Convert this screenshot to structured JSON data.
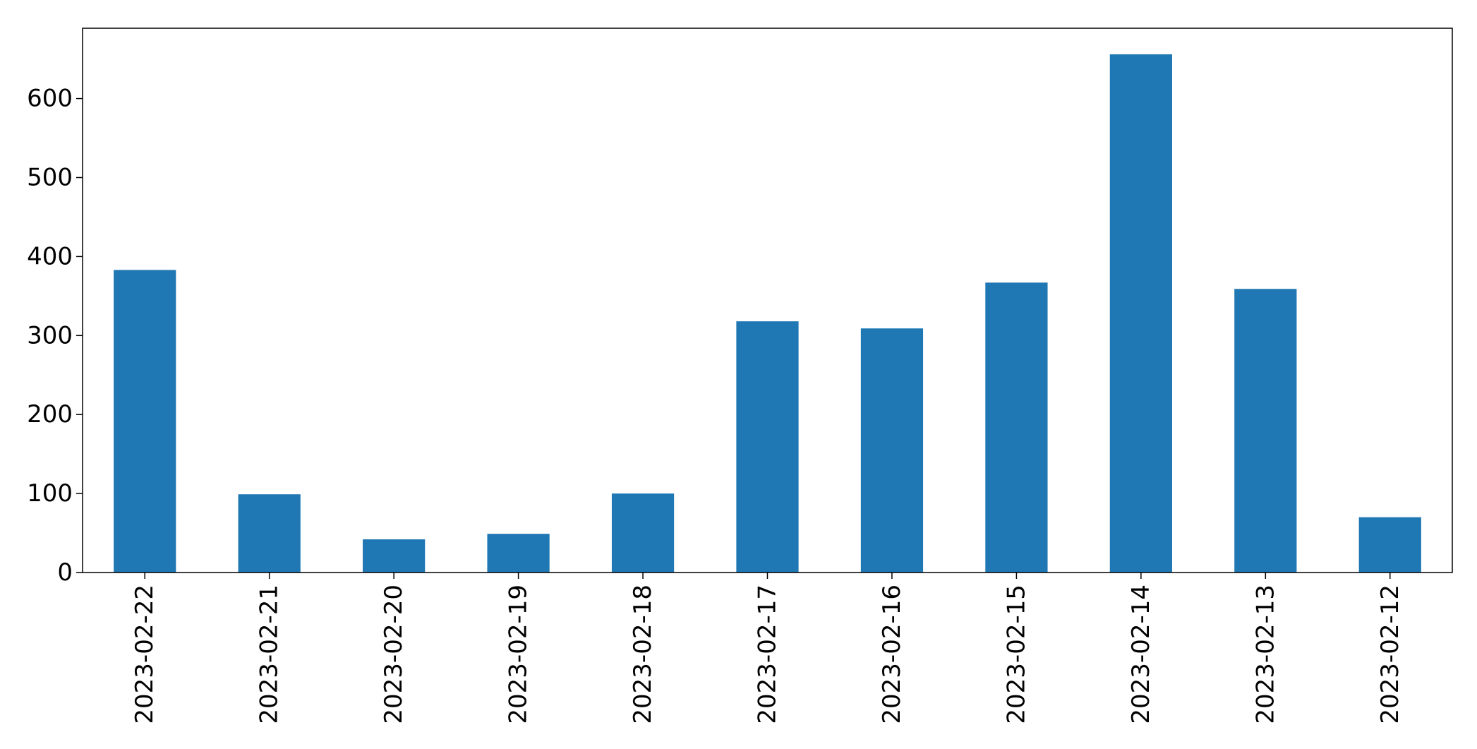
{
  "chart_data": {
    "type": "bar",
    "title": "",
    "xlabel": "",
    "ylabel": "",
    "categories": [
      "2023-02-22",
      "2023-02-21",
      "2023-02-20",
      "2023-02-19",
      "2023-02-18",
      "2023-02-17",
      "2023-02-16",
      "2023-02-15",
      "2023-02-14",
      "2023-02-13",
      "2023-02-12"
    ],
    "values": [
      383,
      99,
      42,
      49,
      100,
      318,
      309,
      367,
      656,
      359,
      70
    ],
    "ylim": [
      0,
      689
    ],
    "yticks": [
      0,
      100,
      200,
      300,
      400,
      500,
      600
    ],
    "bar_color": "#1f77b4",
    "grid": false,
    "legend": "none"
  }
}
